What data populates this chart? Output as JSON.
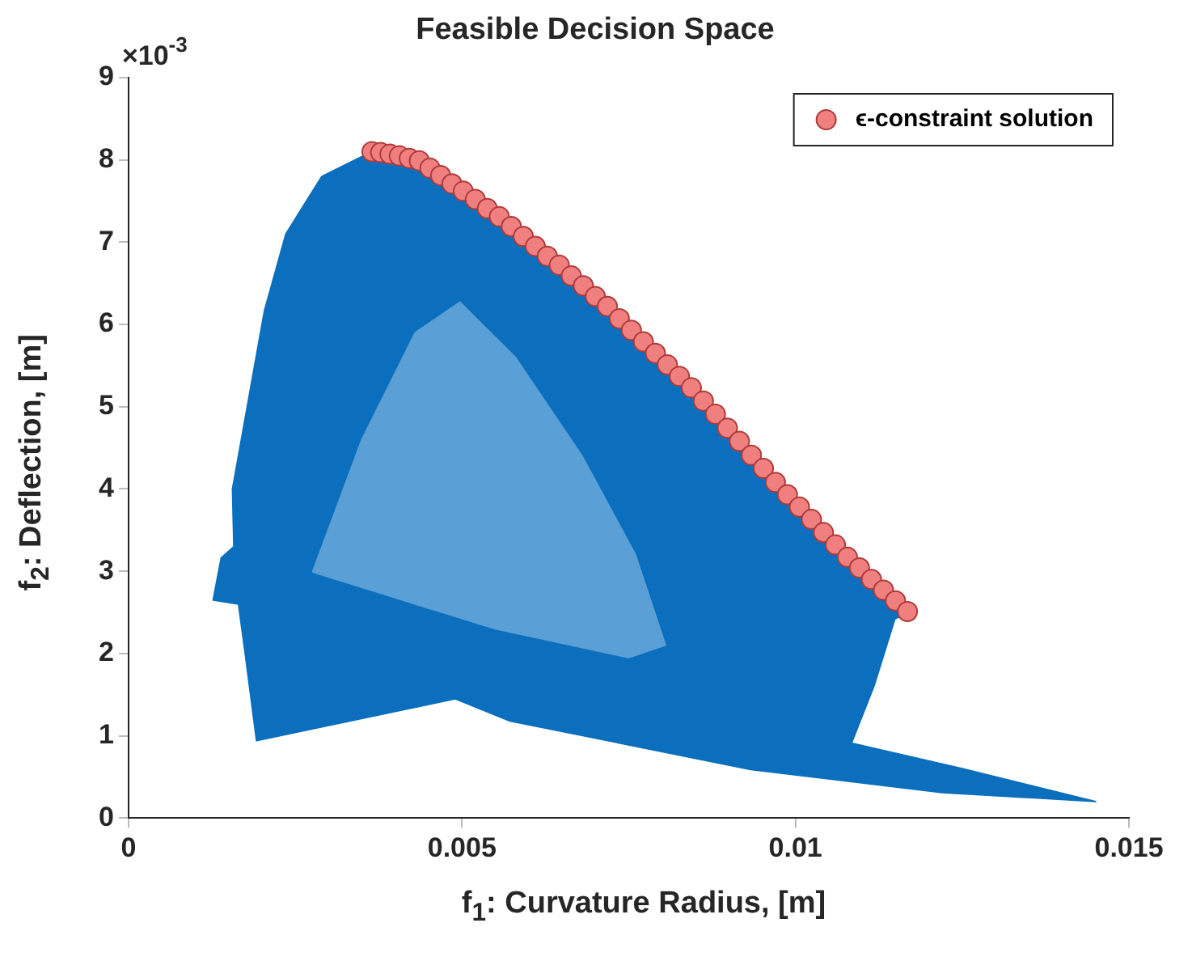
{
  "chart_data": {
    "type": "scatter",
    "title": "Feasible Decision Space",
    "xlabel": "f$_{1}$: Curvature Radius, [m]",
    "ylabel": "f$_{2}$: Deflection, [m]",
    "annotations": [
      "×10$^{-3}$"
    ],
    "xlim": [
      0,
      0.015
    ],
    "xticks": [
      0,
      0.005,
      0.01,
      0.015
    ],
    "ylim": [
      0,
      9
    ],
    "yticks": [
      0,
      1,
      2,
      3,
      4,
      5,
      6,
      7,
      8,
      9
    ],
    "grid": false,
    "legend": "top right",
    "series": [
      {
        "type": "area",
        "color": "#0b6fbd",
        "x": [
          0.00365,
          0.00455,
          0.00556,
          0.00637,
          0.00716,
          0.00837,
          0.00957,
          0.01077,
          0.0117,
          0.01149,
          0.01118,
          0.01084,
          0.0125,
          0.0145,
          0.0122,
          0.00933,
          0.00572,
          0.0049,
          0.00192,
          0.00175,
          0.00165,
          0.00127,
          0.00139,
          0.00158,
          0.00156,
          0.00204,
          0.00236,
          0.0029,
          0.00365
        ],
        "values": [
          8.1,
          7.94,
          7.32,
          6.78,
          6.23,
          5.29,
          4.2,
          3.18,
          2.5,
          2.42,
          1.61,
          0.91,
          0.6,
          0.2,
          0.31,
          0.59,
          1.18,
          1.45,
          0.94,
          2.0,
          2.6,
          2.65,
          3.16,
          3.3,
          4.0,
          6.17,
          7.1,
          7.8,
          8.1
        ]
      },
      {
        "type": "area",
        "color": "#5a9fd6",
        "x": [
          0.00276,
          0.0035,
          0.0043,
          0.00497,
          0.0058,
          0.0068,
          0.0076,
          0.00805,
          0.0075,
          0.0055,
          0.00276
        ],
        "values": [
          2.99,
          4.6,
          5.9,
          6.27,
          5.6,
          4.4,
          3.2,
          2.1,
          1.95,
          2.3,
          2.99
        ]
      },
      {
        "name": "ϵ-constraint solution",
        "color": "#f08080",
        "marker": "circle",
        "x": [
          0.00365,
          0.00378,
          0.00392,
          0.00406,
          0.00421,
          0.00436,
          0.00452,
          0.00468,
          0.00485,
          0.00502,
          0.0052,
          0.00538,
          0.00556,
          0.00574,
          0.00592,
          0.0061,
          0.00628,
          0.00646,
          0.00664,
          0.00682,
          0.007,
          0.00718,
          0.00736,
          0.00754,
          0.00772,
          0.0079,
          0.00808,
          0.00826,
          0.00844,
          0.00862,
          0.0088,
          0.00898,
          0.00916,
          0.00934,
          0.00952,
          0.0097,
          0.00988,
          0.01006,
          0.01024,
          0.01042,
          0.0106,
          0.01078,
          0.01096,
          0.01114,
          0.01132,
          0.0115,
          0.01168
        ],
        "values": [
          8.1,
          8.09,
          8.07,
          8.05,
          8.02,
          7.99,
          7.9,
          7.81,
          7.71,
          7.62,
          7.52,
          7.41,
          7.31,
          7.19,
          7.07,
          6.95,
          6.83,
          6.72,
          6.59,
          6.47,
          6.34,
          6.22,
          6.07,
          5.93,
          5.79,
          5.65,
          5.51,
          5.37,
          5.23,
          5.07,
          4.91,
          4.74,
          4.58,
          4.41,
          4.25,
          4.08,
          3.93,
          3.78,
          3.63,
          3.47,
          3.32,
          3.17,
          3.04,
          2.9,
          2.77,
          2.64,
          2.51
        ]
      }
    ]
  }
}
